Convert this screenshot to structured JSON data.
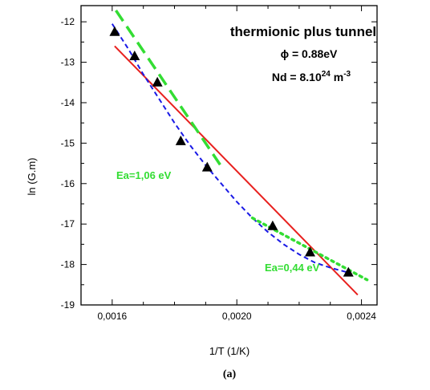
{
  "chart_data": {
    "type": "scatter",
    "xlabel": "1/T (1/K)",
    "ylabel": "ln (G.m)",
    "xlim": [
      0.0015,
      0.00245
    ],
    "ylim": [
      -19,
      -11.6
    ],
    "x_ticks": [
      0.0016,
      0.002,
      0.0024
    ],
    "x_tick_labels": [
      "0,0016",
      "0,0020",
      "0,0024"
    ],
    "y_ticks": [
      -12,
      -13,
      -14,
      -15,
      -16,
      -17,
      -18,
      -19
    ],
    "y_tick_labels": [
      "-12",
      "-13",
      "-14",
      "-15",
      "-16",
      "-17",
      "-18",
      "-19"
    ],
    "annotations": {
      "title": "thermionic plus tunnel",
      "phi": "ϕ = 0.88eV",
      "nd_prefix": "Nd = 8.10",
      "nd_exp": "24",
      "nd_unit": " m",
      "nd_unit_exp": "-3",
      "ea_high": "Ea=1,06 eV",
      "ea_low": "Ea=0,44 eV"
    },
    "caption": "(a)",
    "series": [
      {
        "kind": "points",
        "marker": "triangle",
        "color": "#000000",
        "x": [
          0.001608,
          0.001672,
          0.001745,
          0.00182,
          0.001905,
          0.002115,
          0.002235,
          0.002358
        ],
        "y": [
          -12.25,
          -12.85,
          -13.5,
          -14.95,
          -15.6,
          -17.05,
          -17.7,
          -18.2
        ]
      },
      {
        "kind": "line",
        "style": "solid",
        "color": "#e8201e",
        "x": [
          0.001608,
          0.002388
        ],
        "y": [
          -12.6,
          -18.75
        ]
      },
      {
        "kind": "line",
        "style": "dashed",
        "color": "#1a1ae6",
        "x": [
          0.0016,
          0.00165,
          0.0017,
          0.00175,
          0.0018,
          0.00185,
          0.0019,
          0.00195,
          0.002,
          0.00205,
          0.0021,
          0.00215,
          0.0022,
          0.00225,
          0.0023,
          0.002358
        ],
        "y": [
          -12.05,
          -12.65,
          -13.3,
          -13.9,
          -14.5,
          -15.05,
          -15.55,
          -16.0,
          -16.45,
          -16.85,
          -17.2,
          -17.5,
          -17.75,
          -17.95,
          -18.08,
          -18.2
        ]
      },
      {
        "kind": "line",
        "style": "long-dash",
        "color": "#33dd33",
        "x": [
          0.001612,
          0.001948
        ],
        "y": [
          -11.72,
          -15.55
        ]
      },
      {
        "kind": "line",
        "style": "dotted",
        "color": "#33dd33",
        "x": [
          0.00205,
          0.002418
        ],
        "y": [
          -16.85,
          -18.38
        ]
      }
    ]
  }
}
